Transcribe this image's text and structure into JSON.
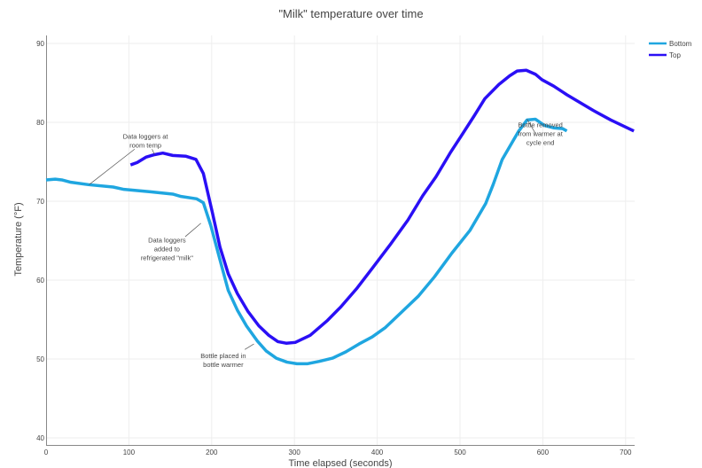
{
  "chart_data": {
    "type": "line",
    "title": "\"Milk\" temperature over time",
    "xlabel": "Time elapsed (seconds)",
    "ylabel": "Temperature (°F)",
    "xlim": [
      0,
      710
    ],
    "ylim": [
      40,
      90
    ],
    "xticks": [
      0,
      100,
      200,
      300,
      400,
      500,
      600,
      700
    ],
    "yticks": [
      40,
      50,
      60,
      70,
      80,
      90
    ],
    "grid": true,
    "legend_position": "top-right",
    "series": [
      {
        "name": "Bottom",
        "color": "#1fa6e0",
        "points": [
          [
            0,
            72.7
          ],
          [
            11,
            72.8
          ],
          [
            19,
            72.7
          ],
          [
            30,
            72.4
          ],
          [
            51,
            72.1
          ],
          [
            81,
            71.8
          ],
          [
            94,
            71.5
          ],
          [
            126,
            71.2
          ],
          [
            153,
            70.9
          ],
          [
            163,
            70.6
          ],
          [
            182,
            70.3
          ],
          [
            190,
            69.8
          ],
          [
            199,
            66.9
          ],
          [
            212,
            61.8
          ],
          [
            220,
            58.7
          ],
          [
            231,
            56.2
          ],
          [
            242,
            54.2
          ],
          [
            255,
            52.3
          ],
          [
            266,
            51.0
          ],
          [
            278,
            50.1
          ],
          [
            291,
            49.6
          ],
          [
            303,
            49.4
          ],
          [
            316,
            49.4
          ],
          [
            330,
            49.7
          ],
          [
            346,
            50.1
          ],
          [
            362,
            50.9
          ],
          [
            378,
            51.9
          ],
          [
            394,
            52.8
          ],
          [
            410,
            54.0
          ],
          [
            431,
            56.1
          ],
          [
            450,
            58.0
          ],
          [
            469,
            60.4
          ],
          [
            490,
            63.4
          ],
          [
            512,
            66.3
          ],
          [
            531,
            69.7
          ],
          [
            540,
            72.1
          ],
          [
            551,
            75.3
          ],
          [
            571,
            78.9
          ],
          [
            581,
            80.3
          ],
          [
            591,
            80.4
          ],
          [
            602,
            79.6
          ],
          [
            613,
            79.3
          ],
          [
            624,
            79.2
          ],
          [
            629,
            78.9
          ]
        ]
      },
      {
        "name": "Top",
        "color": "#2a0ff5",
        "points": [
          [
            102,
            74.6
          ],
          [
            110,
            74.9
          ],
          [
            121,
            75.6
          ],
          [
            131,
            75.9
          ],
          [
            141,
            76.1
          ],
          [
            153,
            75.8
          ],
          [
            169,
            75.7
          ],
          [
            181,
            75.3
          ],
          [
            190,
            73.5
          ],
          [
            201,
            68.5
          ],
          [
            210,
            64.2
          ],
          [
            220,
            60.8
          ],
          [
            231,
            58.3
          ],
          [
            244,
            56.0
          ],
          [
            257,
            54.2
          ],
          [
            269,
            53.0
          ],
          [
            280,
            52.2
          ],
          [
            290,
            52.0
          ],
          [
            301,
            52.1
          ],
          [
            319,
            53.0
          ],
          [
            340,
            54.9
          ],
          [
            356,
            56.6
          ],
          [
            375,
            58.9
          ],
          [
            394,
            61.5
          ],
          [
            415,
            64.4
          ],
          [
            437,
            67.6
          ],
          [
            455,
            70.7
          ],
          [
            471,
            73.1
          ],
          [
            488,
            76.1
          ],
          [
            501,
            78.2
          ],
          [
            517,
            80.8
          ],
          [
            530,
            83.0
          ],
          [
            547,
            84.8
          ],
          [
            560,
            85.9
          ],
          [
            569,
            86.5
          ],
          [
            580,
            86.6
          ],
          [
            591,
            86.1
          ],
          [
            599,
            85.4
          ],
          [
            613,
            84.6
          ],
          [
            629,
            83.5
          ],
          [
            645,
            82.5
          ],
          [
            661,
            81.5
          ],
          [
            682,
            80.3
          ],
          [
            710,
            78.9
          ]
        ]
      }
    ],
    "annotations": [
      {
        "lines": [
          "Data loggers at",
          "room temp"
        ],
        "text_at": [
          120,
          77.9
        ],
        "arrows": [
          [
            [
              107,
              76.6
            ],
            [
              52,
              72.1
            ]
          ],
          [
            [
              128,
              76.6
            ],
            [
              131,
              75.9
            ]
          ]
        ]
      },
      {
        "lines": [
          "Data loggers",
          "added to",
          "refrigerated \"milk\""
        ],
        "text_at": [
          146,
          64.8
        ],
        "arrows": [
          [
            [
              168,
              65.5
            ],
            [
              187,
              67.2
            ]
          ]
        ]
      },
      {
        "lines": [
          "Bottle placed in",
          "bottle warmer"
        ],
        "text_at": [
          214,
          50.1
        ],
        "arrows": [
          [
            [
              240,
              51.2
            ],
            [
              251,
              51.9
            ]
          ]
        ]
      },
      {
        "lines": [
          "Bottle removed",
          "from warmer at",
          "cycle end"
        ],
        "text_at": [
          597,
          79.4
        ],
        "arrows": [
          [
            [
              591,
              78.6
            ],
            [
              581,
              80.4
            ]
          ]
        ]
      }
    ]
  }
}
